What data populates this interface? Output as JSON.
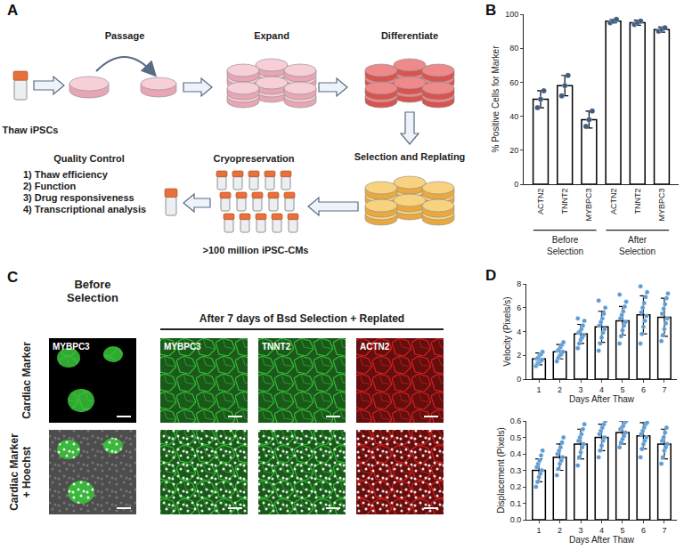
{
  "panel_labels": [
    "A",
    "B",
    "C",
    "D"
  ],
  "diagram": {
    "steps": [
      {
        "label": "Thaw iPSCs"
      },
      {
        "label": "Passage"
      },
      {
        "label": "Expand"
      },
      {
        "label": "Differentiate"
      },
      {
        "label": "Selection and Replating"
      },
      {
        "label": "Cryopreservation",
        "note": ">100 million iPSC-CMs"
      },
      {
        "label": "Quality Control",
        "items": [
          "1) Thaw efficiency",
          "2) Function",
          "3) Drug responsiveness",
          "4) Transcriptional analysis"
        ]
      }
    ]
  },
  "chart_data": [
    {
      "type": "bar",
      "y_label": "% Positive Cells for Marker",
      "categories": [
        "ACTN2",
        "TNNT2",
        "MYBPC3",
        "ACTN2",
        "TNNT2",
        "MYBPC3"
      ],
      "groups": [
        {
          "lines": [
            "Before",
            "Selection"
          ],
          "start": 0,
          "end": 2
        },
        {
          "lines": [
            "After",
            "Selection"
          ],
          "start": 3,
          "end": 5
        }
      ],
      "series": [
        {
          "type": "bar",
          "color": "#ffffff",
          "values": [
            50,
            58,
            38,
            96,
            95,
            91
          ],
          "errors": [
            5,
            6,
            5,
            1,
            1.5,
            1.5
          ]
        },
        {
          "type": "scatter",
          "color": "#3d5a80",
          "values": [
            [
              45,
              50,
              55
            ],
            [
              52,
              58,
              64
            ],
            [
              34,
              38,
              43
            ],
            [
              95,
              96,
              97
            ],
            [
              94,
              95,
              96
            ],
            [
              90,
              91,
              92
            ]
          ]
        }
      ],
      "ylim": [
        0,
        100
      ],
      "yticks": [
        0,
        20,
        40,
        60,
        80,
        100
      ],
      "grid": false
    },
    {
      "type": "bar",
      "y_label": "Velocity (Pixels/s)",
      "x_label": "Days After Thaw",
      "x": [
        1,
        2,
        3,
        4,
        5,
        6,
        7
      ],
      "series": [
        {
          "type": "bar",
          "color": "#ffffff",
          "values": [
            1.7,
            2.3,
            3.8,
            4.4,
            4.9,
            5.4,
            5.2
          ],
          "errors": [
            0.5,
            0.6,
            0.8,
            1.3,
            1.2,
            1.6,
            1.6
          ]
        },
        {
          "type": "scatter",
          "color": "#5b9bd5",
          "values": [
            [
              1.1,
              1.3,
              1.4,
              1.5,
              1.6,
              1.7,
              1.8,
              2.0,
              2.1,
              2.3
            ],
            [
              1.5,
              1.8,
              2.0,
              2.1,
              2.3,
              2.4,
              2.5,
              2.7,
              2.9,
              3.1
            ],
            [
              2.6,
              3.0,
              3.3,
              3.5,
              3.7,
              3.9,
              4.0,
              4.2,
              4.5,
              4.9,
              5.1
            ],
            [
              2.4,
              3.0,
              3.5,
              3.9,
              4.2,
              4.5,
              4.8,
              5.1,
              5.5,
              6.0,
              6.6
            ],
            [
              3.0,
              3.6,
              4.1,
              4.5,
              4.8,
              5.1,
              5.4,
              5.7,
              6.1,
              6.5,
              7.1
            ],
            [
              3.0,
              3.8,
              4.4,
              4.9,
              5.3,
              5.6,
              6.0,
              6.4,
              6.9,
              7.3,
              7.8
            ],
            [
              3.2,
              3.7,
              4.2,
              4.7,
              5.1,
              5.5,
              5.9,
              6.3,
              6.8,
              7.2
            ]
          ]
        }
      ],
      "xlim": [
        0.4,
        7.6
      ],
      "xticks": [
        1,
        2,
        3,
        4,
        5,
        6,
        7
      ],
      "ylim": [
        0,
        8
      ],
      "yticks": [
        0,
        2,
        4,
        6,
        8
      ],
      "grid": false
    },
    {
      "type": "bar",
      "y_label": "Displacement (Pixels)",
      "x_label": "Days After Thaw",
      "x": [
        1,
        2,
        3,
        4,
        5,
        6,
        7
      ],
      "series": [
        {
          "type": "bar",
          "color": "#ffffff",
          "values": [
            0.3,
            0.38,
            0.46,
            0.5,
            0.53,
            0.51,
            0.46
          ],
          "errors": [
            0.07,
            0.08,
            0.09,
            0.08,
            0.07,
            0.08,
            0.09
          ]
        },
        {
          "type": "scatter",
          "color": "#5b9bd5",
          "values": [
            [
              0.2,
              0.23,
              0.26,
              0.28,
              0.3,
              0.32,
              0.34,
              0.36,
              0.39,
              0.42
            ],
            [
              0.27,
              0.31,
              0.34,
              0.36,
              0.38,
              0.4,
              0.42,
              0.44,
              0.47,
              0.5
            ],
            [
              0.33,
              0.38,
              0.41,
              0.44,
              0.46,
              0.48,
              0.5,
              0.52,
              0.55,
              0.58
            ],
            [
              0.38,
              0.42,
              0.45,
              0.48,
              0.5,
              0.52,
              0.54,
              0.56,
              0.58,
              0.6
            ],
            [
              0.44,
              0.47,
              0.49,
              0.51,
              0.53,
              0.55,
              0.56,
              0.57,
              0.59,
              0.6
            ],
            [
              0.38,
              0.43,
              0.46,
              0.48,
              0.5,
              0.52,
              0.54,
              0.56,
              0.58,
              0.59
            ],
            [
              0.34,
              0.38,
              0.42,
              0.44,
              0.46,
              0.48,
              0.5,
              0.53,
              0.56
            ]
          ]
        }
      ],
      "xlim": [
        0.4,
        7.6
      ],
      "xticks": [
        1,
        2,
        3,
        4,
        5,
        6,
        7
      ],
      "ylim": [
        0,
        0.6
      ],
      "yticks": [
        {
          "value": 0,
          "label": "0.0"
        },
        {
          "value": 0.1,
          "label": "0.1"
        },
        {
          "value": 0.2,
          "label": "0.2"
        },
        {
          "value": 0.3,
          "label": "0.3"
        },
        {
          "value": 0.4,
          "label": "0.4"
        },
        {
          "value": 0.5,
          "label": "0.5"
        },
        {
          "value": 0.6,
          "label": "0.6"
        }
      ],
      "grid": false
    }
  ],
  "images": {
    "column_headers": [
      {
        "lines": [
          "Before",
          "Selection"
        ]
      },
      {
        "lines": [
          "After 7 days of Bsd Selection + Replated"
        ]
      }
    ],
    "row_labels": [
      [
        "Cardiac Marker"
      ],
      [
        "Cardiac Marker",
        "+ Hoechst"
      ]
    ],
    "columns": [
      {
        "marker": "MYBPC3",
        "color": "#39c639"
      },
      {
        "marker": "MYBPC3",
        "color": "#39c639"
      },
      {
        "marker": "TNNT2",
        "color": "#39c639"
      },
      {
        "marker": "ACTN2",
        "color": "#e02020"
      }
    ]
  }
}
